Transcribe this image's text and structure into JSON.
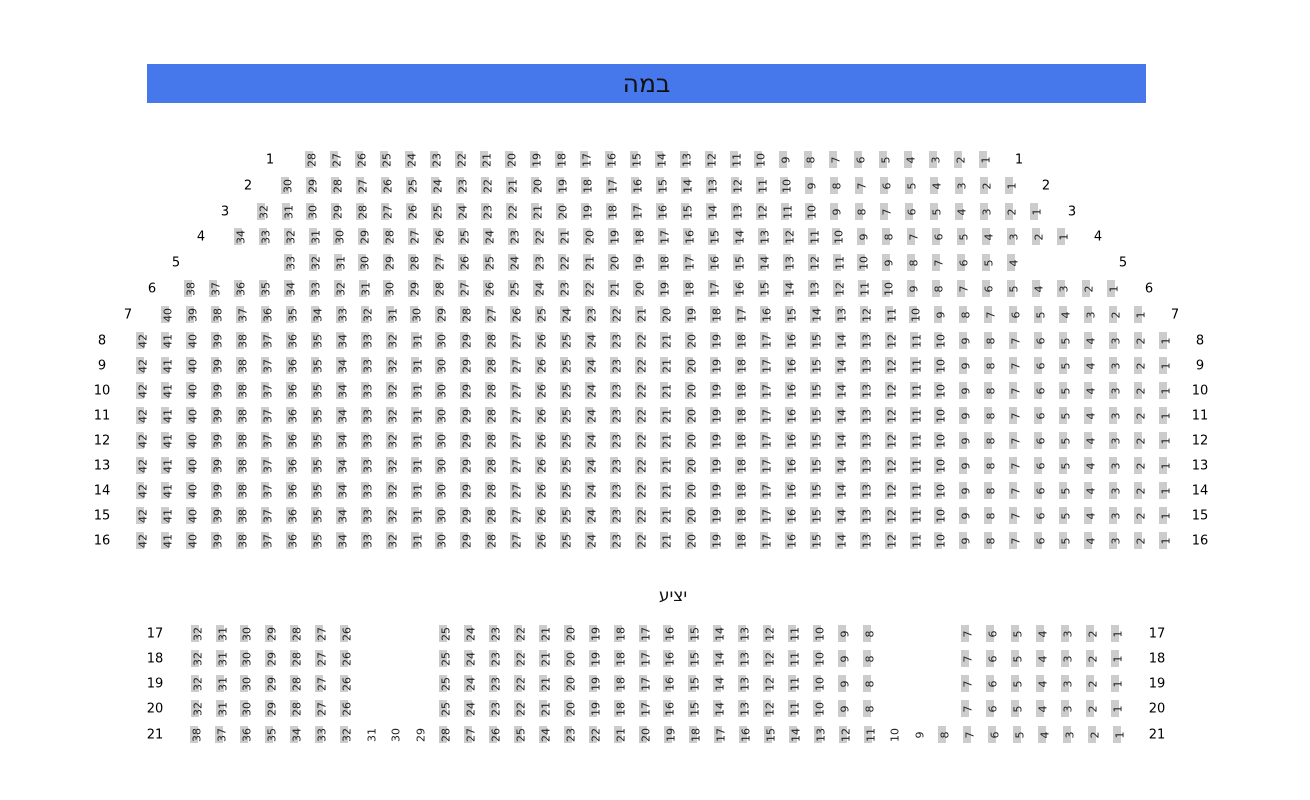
{
  "stage_label": "במה",
  "balcony_label": "יציע",
  "colors": {
    "stage": "#4678ec",
    "seat": "#cccccc"
  },
  "rows": [
    {
      "label": "1",
      "seats": [
        28,
        27,
        26,
        25,
        24,
        23,
        22,
        21,
        20,
        19,
        18,
        17,
        16,
        15,
        14,
        13,
        12,
        11,
        10,
        9,
        8,
        7,
        6,
        5,
        4,
        3,
        2,
        1
      ]
    },
    {
      "label": "2",
      "seats": [
        30,
        29,
        28,
        27,
        26,
        25,
        24,
        23,
        22,
        21,
        20,
        19,
        18,
        17,
        16,
        15,
        14,
        13,
        12,
        11,
        10,
        9,
        8,
        7,
        6,
        5,
        4,
        3,
        2,
        1
      ]
    },
    {
      "label": "3",
      "seats": [
        32,
        31,
        30,
        29,
        28,
        27,
        26,
        25,
        24,
        23,
        22,
        21,
        20,
        19,
        18,
        17,
        16,
        15,
        14,
        13,
        12,
        11,
        10,
        9,
        8,
        7,
        6,
        5,
        4,
        3,
        2,
        1
      ]
    },
    {
      "label": "4",
      "seats": [
        34,
        33,
        32,
        31,
        30,
        29,
        28,
        27,
        26,
        25,
        24,
        23,
        22,
        21,
        20,
        19,
        18,
        17,
        16,
        15,
        14,
        13,
        12,
        11,
        10,
        9,
        8,
        7,
        6,
        5,
        4,
        3,
        2,
        1
      ]
    },
    {
      "label": "5",
      "seats": [
        33,
        32,
        31,
        30,
        29,
        28,
        27,
        26,
        25,
        24,
        23,
        22,
        21,
        20,
        19,
        18,
        17,
        16,
        15,
        14,
        13,
        12,
        11,
        10,
        9,
        8,
        7,
        6,
        5,
        4
      ]
    },
    {
      "label": "6",
      "seats": [
        38,
        37,
        36,
        35,
        34,
        33,
        32,
        31,
        30,
        29,
        28,
        27,
        26,
        25,
        24,
        23,
        22,
        21,
        20,
        19,
        18,
        17,
        16,
        15,
        14,
        13,
        12,
        11,
        10,
        9,
        8,
        7,
        6,
        5,
        4,
        3,
        2,
        1
      ]
    },
    {
      "label": "7",
      "seats": [
        40,
        39,
        38,
        37,
        36,
        35,
        34,
        33,
        32,
        31,
        30,
        29,
        28,
        27,
        26,
        25,
        24,
        23,
        22,
        21,
        20,
        19,
        18,
        17,
        16,
        15,
        14,
        13,
        12,
        11,
        10,
        9,
        8,
        7,
        6,
        5,
        4,
        3,
        2,
        1
      ]
    },
    {
      "label": "8",
      "seats": [
        42,
        41,
        40,
        39,
        38,
        37,
        36,
        35,
        34,
        33,
        32,
        31,
        30,
        29,
        28,
        27,
        26,
        25,
        24,
        23,
        22,
        21,
        20,
        19,
        18,
        17,
        16,
        15,
        14,
        13,
        12,
        11,
        10,
        9,
        8,
        7,
        6,
        5,
        4,
        3,
        2,
        1
      ]
    },
    {
      "label": "9",
      "seats": [
        42,
        41,
        40,
        39,
        38,
        37,
        36,
        35,
        34,
        33,
        32,
        31,
        30,
        29,
        28,
        27,
        26,
        25,
        24,
        23,
        22,
        21,
        20,
        19,
        18,
        17,
        16,
        15,
        14,
        13,
        12,
        11,
        10,
        9,
        8,
        7,
        6,
        5,
        4,
        3,
        2,
        1
      ]
    },
    {
      "label": "10",
      "seats": [
        42,
        41,
        40,
        39,
        38,
        37,
        36,
        35,
        34,
        33,
        32,
        31,
        30,
        29,
        28,
        27,
        26,
        25,
        24,
        23,
        22,
        21,
        20,
        19,
        18,
        17,
        16,
        15,
        14,
        13,
        12,
        11,
        10,
        9,
        8,
        7,
        6,
        5,
        4,
        3,
        2,
        1
      ]
    },
    {
      "label": "11",
      "seats": [
        42,
        41,
        40,
        39,
        38,
        37,
        36,
        35,
        34,
        33,
        32,
        31,
        30,
        29,
        28,
        27,
        26,
        25,
        24,
        23,
        22,
        21,
        20,
        19,
        18,
        17,
        16,
        15,
        14,
        13,
        12,
        11,
        10,
        9,
        8,
        7,
        6,
        5,
        4,
        3,
        2,
        1
      ]
    },
    {
      "label": "12",
      "seats": [
        42,
        41,
        40,
        39,
        38,
        37,
        36,
        35,
        34,
        33,
        32,
        31,
        30,
        29,
        28,
        27,
        26,
        25,
        24,
        23,
        22,
        21,
        20,
        19,
        18,
        17,
        16,
        15,
        14,
        13,
        12,
        11,
        10,
        9,
        8,
        7,
        6,
        5,
        4,
        3,
        2,
        1
      ]
    },
    {
      "label": "13",
      "seats": [
        42,
        41,
        40,
        39,
        38,
        37,
        36,
        35,
        34,
        33,
        32,
        31,
        30,
        29,
        28,
        27,
        26,
        25,
        24,
        23,
        22,
        21,
        20,
        19,
        18,
        17,
        16,
        15,
        14,
        13,
        12,
        11,
        10,
        9,
        8,
        7,
        6,
        5,
        4,
        3,
        2,
        1
      ]
    },
    {
      "label": "14",
      "seats": [
        42,
        41,
        40,
        39,
        38,
        37,
        36,
        35,
        34,
        33,
        32,
        31,
        30,
        29,
        28,
        27,
        26,
        25,
        24,
        23,
        22,
        21,
        20,
        19,
        18,
        17,
        16,
        15,
        14,
        13,
        12,
        11,
        10,
        9,
        8,
        7,
        6,
        5,
        4,
        3,
        2,
        1
      ]
    },
    {
      "label": "15",
      "seats": [
        42,
        41,
        40,
        39,
        38,
        37,
        36,
        35,
        34,
        33,
        32,
        31,
        30,
        29,
        28,
        27,
        26,
        25,
        24,
        23,
        22,
        21,
        20,
        19,
        18,
        17,
        16,
        15,
        14,
        13,
        12,
        11,
        10,
        9,
        8,
        7,
        6,
        5,
        4,
        3,
        2,
        1
      ]
    },
    {
      "label": "16",
      "seats": [
        42,
        41,
        40,
        39,
        38,
        37,
        36,
        35,
        34,
        33,
        32,
        31,
        30,
        29,
        28,
        27,
        26,
        25,
        24,
        23,
        22,
        21,
        20,
        19,
        18,
        17,
        16,
        15,
        14,
        13,
        12,
        11,
        10,
        9,
        8,
        7,
        6,
        5,
        4,
        3,
        2,
        1
      ]
    },
    {
      "label": "17",
      "seats": [
        32,
        31,
        30,
        29,
        28,
        27,
        26,
        25,
        24,
        23,
        22,
        21,
        20,
        19,
        18,
        17,
        16,
        15,
        14,
        13,
        12,
        11,
        10,
        9,
        8,
        7,
        6,
        5,
        4,
        3,
        2,
        1
      ]
    },
    {
      "label": "18",
      "seats": [
        32,
        31,
        30,
        29,
        28,
        27,
        26,
        25,
        24,
        23,
        22,
        21,
        20,
        19,
        18,
        17,
        16,
        15,
        14,
        13,
        12,
        11,
        10,
        9,
        8,
        7,
        6,
        5,
        4,
        3,
        2,
        1
      ]
    },
    {
      "label": "19",
      "seats": [
        32,
        31,
        30,
        29,
        28,
        27,
        26,
        25,
        24,
        23,
        22,
        21,
        20,
        19,
        18,
        17,
        16,
        15,
        14,
        13,
        12,
        11,
        10,
        9,
        8,
        7,
        6,
        5,
        4,
        3,
        2,
        1
      ]
    },
    {
      "label": "20",
      "seats": [
        32,
        31,
        30,
        29,
        28,
        27,
        26,
        25,
        24,
        23,
        22,
        21,
        20,
        19,
        18,
        17,
        16,
        15,
        14,
        13,
        12,
        11,
        10,
        9,
        8,
        7,
        6,
        5,
        4,
        3,
        2,
        1
      ]
    },
    {
      "label": "21",
      "seats": [
        38,
        37,
        36,
        35,
        34,
        33,
        32,
        31,
        30,
        29,
        28,
        27,
        26,
        25,
        24,
        23,
        22,
        21,
        20,
        19,
        18,
        17,
        16,
        15,
        14,
        13,
        12,
        11,
        10,
        9,
        8,
        7,
        6,
        5,
        4,
        3,
        2,
        1
      ],
      "unmarked": [
        31,
        30,
        29,
        10,
        9
      ]
    }
  ]
}
